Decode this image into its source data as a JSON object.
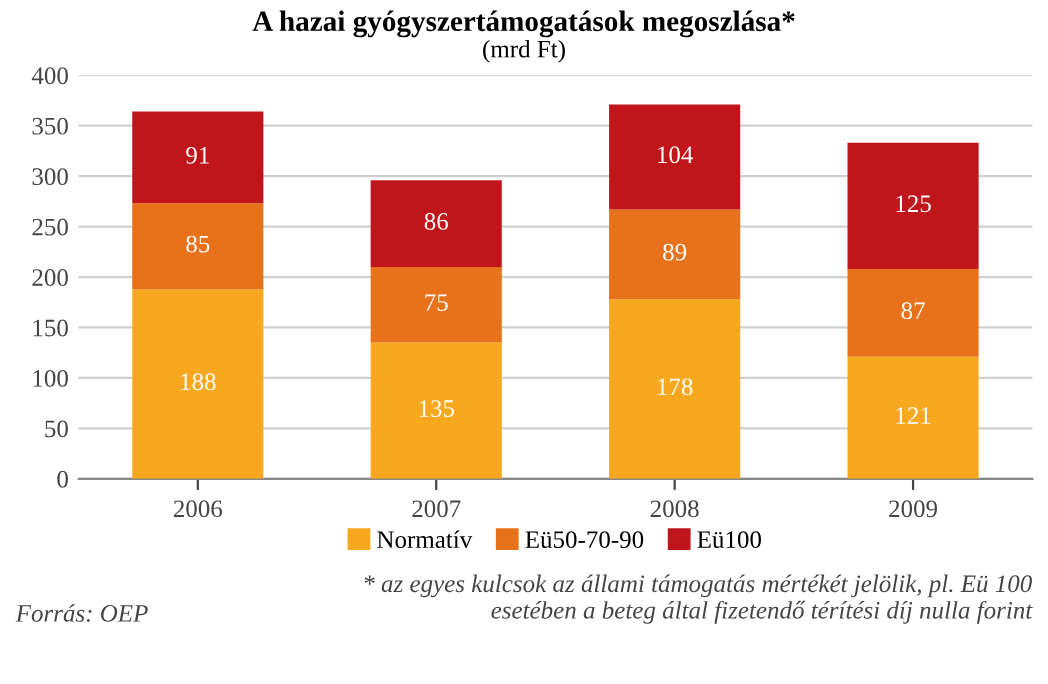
{
  "chart_data": {
    "type": "bar",
    "title": "A hazai gyógyszertámogatások megoszlása*",
    "subtitle": "(mrd Ft)",
    "categories": [
      "2006",
      "2007",
      "2008",
      "2009"
    ],
    "series": [
      {
        "name": "Normatív",
        "color": "#f7a81e",
        "values": [
          188,
          135,
          178,
          121
        ]
      },
      {
        "name": "Eü50-70-90",
        "color": "#e8721c",
        "values": [
          85,
          75,
          89,
          87
        ]
      },
      {
        "name": "Eü100",
        "color": "#c0151b",
        "values": [
          91,
          86,
          104,
          125
        ]
      }
    ],
    "stacked": true,
    "data_labels": true,
    "ylim": [
      0,
      400
    ],
    "yticks": [
      0,
      50,
      100,
      150,
      200,
      250,
      300,
      350,
      400
    ],
    "grid": "y",
    "legend": "bottom",
    "annotations": [
      "* az egyes kulcsok az állami támogatás mértékét jelölik, pl. Eü 100 esetében a beteg által fizetendő térítési díj nulla forint",
      "Forrás: OEP"
    ]
  }
}
